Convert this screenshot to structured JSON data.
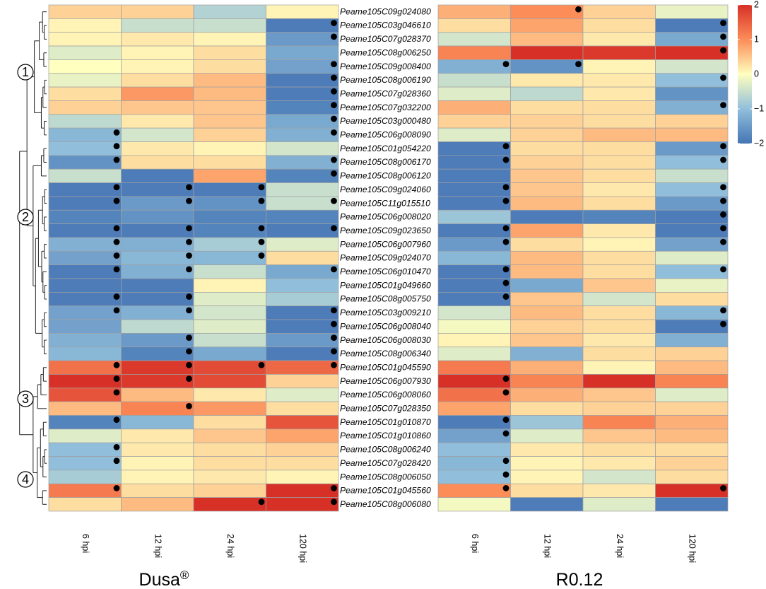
{
  "chart_data": {
    "type": "heatmap",
    "genes": [
      "Peame105C09g024080",
      "Peame105C03g046610",
      "Peame105C07g028370",
      "Peame105C08g006250",
      "Peame105C09g008400",
      "Peame105C08g006190",
      "Peame105C07g028360",
      "Peame105C07g032200",
      "Peame105C03g000480",
      "Peame105C06g008090",
      "Peame105C01g054220",
      "Peame105C08g006170",
      "Peame105C08g006120",
      "Peame105C09g024060",
      "Peame105C11g015510",
      "Peame105C06g008020",
      "Peame105C09g023650",
      "Peame105C06g007960",
      "Peame105C09g024070",
      "Peame105C06g010470",
      "Peame105C01g049660",
      "Peame105C08g005750",
      "Peame105C03g009210",
      "Peame105C06g008040",
      "Peame105C06g008030",
      "Peame105C08g006340",
      "Peame105C01g045590",
      "Peame105C06g007930",
      "Peame105C06g008060",
      "Peame105C07g028350",
      "Peame105C01g010870",
      "Peame105C01g010860",
      "Peame105C08g006240",
      "Peame105C07g028420",
      "Peame105C08g006050",
      "Peame105C01g045560",
      "Peame105C08g006080"
    ],
    "columns": [
      "6 hpi",
      "12 hpi",
      "24 hpi",
      "120 hpi"
    ],
    "panels": [
      {
        "name": "Dusa",
        "superscript": "®",
        "values": [
          [
            0.4,
            0.4,
            -0.7,
            0.1
          ],
          [
            0.1,
            -0.5,
            -0.5,
            -1.9
          ],
          [
            0.1,
            0.2,
            0.1,
            -1.5
          ],
          [
            -0.3,
            0.1,
            0.3,
            -1.3
          ],
          [
            0.0,
            0.1,
            0.3,
            -1.4
          ],
          [
            -0.2,
            0.3,
            0.6,
            -1.9
          ],
          [
            0.3,
            0.9,
            0.6,
            -1.9
          ],
          [
            0.4,
            0.5,
            0.5,
            -1.8
          ],
          [
            -0.6,
            0.2,
            0.5,
            -1.3
          ],
          [
            -1.1,
            -0.4,
            0.4,
            -1.2
          ],
          [
            -1.0,
            0.2,
            0.1,
            -0.4
          ],
          [
            -1.6,
            0.3,
            0.3,
            -1.2
          ],
          [
            -0.5,
            -1.9,
            0.8,
            -1.8
          ],
          [
            -1.9,
            -1.9,
            -1.9,
            -0.5
          ],
          [
            -1.9,
            -1.5,
            -1.6,
            -0.5
          ],
          [
            -1.8,
            -1.6,
            -1.8,
            -1.8
          ],
          [
            -1.9,
            -1.9,
            -1.8,
            -1.9
          ],
          [
            -1.2,
            -1.2,
            -0.8,
            -0.3
          ],
          [
            -1.4,
            -1.1,
            -1.1,
            0.3
          ],
          [
            -1.9,
            -1.2,
            -0.5,
            -1.3
          ],
          [
            -1.9,
            -1.9,
            0.1,
            -1.0
          ],
          [
            -1.9,
            -1.9,
            -0.3,
            -0.8
          ],
          [
            -1.4,
            -1.2,
            -0.4,
            -1.9
          ],
          [
            -1.4,
            -0.6,
            -0.3,
            -1.9
          ],
          [
            -1.2,
            -1.5,
            -0.5,
            -1.5
          ],
          [
            -1.1,
            -1.8,
            -1.3,
            -1.9
          ],
          [
            1.3,
            1.9,
            1.7,
            1.4
          ],
          [
            2.0,
            1.9,
            1.7,
            0.4
          ],
          [
            1.6,
            0.6,
            0.2,
            -0.3
          ],
          [
            0.6,
            1.1,
            0.9,
            0.3
          ],
          [
            -1.8,
            -1.1,
            0.3,
            1.6
          ],
          [
            -0.3,
            0.2,
            0.5,
            0.8
          ],
          [
            -1.0,
            0.2,
            0.3,
            0.4
          ],
          [
            -1.0,
            0.1,
            0.3,
            0.3
          ],
          [
            -0.8,
            0.1,
            0.2,
            0.1
          ],
          [
            1.2,
            0.3,
            0.4,
            2.0
          ],
          [
            0.3,
            0.6,
            2.0,
            2.0
          ]
        ],
        "dots": [
          [
            0,
            0,
            0,
            0
          ],
          [
            0,
            0,
            0,
            1
          ],
          [
            0,
            0,
            0,
            1
          ],
          [
            0,
            0,
            0,
            0
          ],
          [
            0,
            0,
            0,
            1
          ],
          [
            0,
            0,
            0,
            1
          ],
          [
            0,
            0,
            0,
            1
          ],
          [
            0,
            0,
            0,
            1
          ],
          [
            0,
            0,
            0,
            1
          ],
          [
            1,
            0,
            0,
            1
          ],
          [
            1,
            0,
            0,
            0
          ],
          [
            1,
            0,
            0,
            1
          ],
          [
            0,
            0,
            0,
            1
          ],
          [
            1,
            1,
            1,
            0
          ],
          [
            1,
            1,
            1,
            1
          ],
          [
            0,
            0,
            0,
            0
          ],
          [
            1,
            1,
            1,
            1
          ],
          [
            1,
            1,
            1,
            0
          ],
          [
            1,
            1,
            1,
            0
          ],
          [
            1,
            1,
            0,
            1
          ],
          [
            0,
            0,
            0,
            0
          ],
          [
            1,
            1,
            0,
            0
          ],
          [
            1,
            1,
            0,
            1
          ],
          [
            0,
            0,
            0,
            1
          ],
          [
            0,
            1,
            0,
            1
          ],
          [
            0,
            1,
            0,
            1
          ],
          [
            1,
            1,
            1,
            1
          ],
          [
            1,
            1,
            0,
            0
          ],
          [
            1,
            0,
            0,
            0
          ],
          [
            0,
            1,
            0,
            0
          ],
          [
            1,
            0,
            0,
            0
          ],
          [
            0,
            0,
            0,
            0
          ],
          [
            1,
            0,
            0,
            0
          ],
          [
            1,
            0,
            0,
            0
          ],
          [
            0,
            0,
            0,
            0
          ],
          [
            1,
            0,
            0,
            1
          ],
          [
            0,
            0,
            1,
            1
          ]
        ]
      },
      {
        "name": "R0.12",
        "superscript": "",
        "values": [
          [
            0.7,
            1.0,
            0.4,
            -0.2
          ],
          [
            0.3,
            0.8,
            0.3,
            -1.9
          ],
          [
            -0.4,
            0.6,
            0.2,
            -1.3
          ],
          [
            1.1,
            2.0,
            1.9,
            2.0
          ],
          [
            -1.2,
            -1.6,
            0.1,
            -0.4
          ],
          [
            -0.5,
            0.2,
            0.2,
            -1.0
          ],
          [
            -0.3,
            -0.6,
            0.2,
            -1.6
          ],
          [
            0.7,
            0.3,
            0.3,
            -1.2
          ],
          [
            0.4,
            0.4,
            0.3,
            0.4
          ],
          [
            -0.3,
            0.4,
            0.6,
            0.6
          ],
          [
            -1.9,
            0.3,
            0.3,
            -1.5
          ],
          [
            -1.9,
            0.4,
            0.3,
            -1.0
          ],
          [
            -1.9,
            0.5,
            0.3,
            -0.5
          ],
          [
            -1.9,
            0.5,
            0.2,
            -1.0
          ],
          [
            -1.9,
            0.6,
            0.3,
            -1.5
          ],
          [
            -0.9,
            -1.9,
            -1.8,
            -1.9
          ],
          [
            -1.9,
            0.8,
            0.2,
            -1.9
          ],
          [
            -1.5,
            0.3,
            0.1,
            -1.4
          ],
          [
            -1.1,
            0.6,
            0.3,
            -0.3
          ],
          [
            -1.9,
            0.6,
            0.3,
            -1.0
          ],
          [
            -1.9,
            -1.3,
            0.5,
            -0.2
          ],
          [
            -1.9,
            0.5,
            -0.4,
            0.3
          ],
          [
            -0.4,
            0.6,
            0.3,
            -1.1
          ],
          [
            -0.1,
            0.4,
            0.3,
            -1.9
          ],
          [
            0.1,
            0.5,
            0.2,
            -1.2
          ],
          [
            -0.3,
            -1.2,
            0.3,
            0.4
          ],
          [
            1.2,
            0.7,
            0.1,
            0.6
          ],
          [
            2.0,
            1.1,
            2.0,
            1.1
          ],
          [
            1.3,
            0.7,
            0.5,
            -0.3
          ],
          [
            0.8,
            0.3,
            0.4,
            0.4
          ],
          [
            -1.9,
            -0.9,
            1.1,
            0.7
          ],
          [
            -1.4,
            -0.3,
            0.5,
            0.6
          ],
          [
            -1.0,
            0.2,
            0.3,
            0.3
          ],
          [
            -1.1,
            0.1,
            0.2,
            0.4
          ],
          [
            -1.0,
            0.1,
            -0.4,
            0.3
          ],
          [
            1.0,
            0.3,
            0.2,
            2.0
          ],
          [
            -0.1,
            -1.9,
            -0.3,
            -1.9
          ]
        ],
        "dots": [
          [
            0,
            1,
            0,
            0
          ],
          [
            0,
            0,
            0,
            1
          ],
          [
            0,
            0,
            0,
            1
          ],
          [
            0,
            0,
            0,
            1
          ],
          [
            1,
            1,
            0,
            0
          ],
          [
            0,
            0,
            0,
            1
          ],
          [
            0,
            0,
            0,
            0
          ],
          [
            0,
            0,
            0,
            1
          ],
          [
            0,
            0,
            0,
            0
          ],
          [
            0,
            0,
            0,
            0
          ],
          [
            1,
            0,
            0,
            1
          ],
          [
            1,
            0,
            0,
            1
          ],
          [
            0,
            0,
            0,
            0
          ],
          [
            1,
            0,
            0,
            1
          ],
          [
            1,
            0,
            0,
            1
          ],
          [
            0,
            0,
            0,
            1
          ],
          [
            1,
            0,
            0,
            1
          ],
          [
            1,
            0,
            0,
            1
          ],
          [
            0,
            0,
            0,
            0
          ],
          [
            1,
            0,
            0,
            1
          ],
          [
            1,
            0,
            0,
            0
          ],
          [
            1,
            0,
            0,
            0
          ],
          [
            0,
            0,
            0,
            1
          ],
          [
            0,
            0,
            0,
            1
          ],
          [
            0,
            0,
            0,
            0
          ],
          [
            0,
            0,
            0,
            0
          ],
          [
            0,
            0,
            0,
            0
          ],
          [
            1,
            0,
            0,
            0
          ],
          [
            1,
            0,
            0,
            0
          ],
          [
            0,
            0,
            0,
            0
          ],
          [
            1,
            0,
            0,
            0
          ],
          [
            1,
            0,
            0,
            0
          ],
          [
            0,
            0,
            0,
            0
          ],
          [
            1,
            0,
            0,
            0
          ],
          [
            1,
            0,
            0,
            0
          ],
          [
            1,
            0,
            0,
            1
          ],
          [
            0,
            0,
            0,
            0
          ]
        ]
      }
    ],
    "legend": {
      "range": [
        -2,
        2
      ],
      "ticks": [
        "2",
        "1",
        "0",
        "−1",
        "−2"
      ],
      "tick_values": [
        2,
        1,
        0,
        -1,
        -2
      ],
      "colors": [
        "#4575b4",
        "#91bfdb",
        "#ffffbf",
        "#fc8d59",
        "#d73027"
      ]
    },
    "dendrogram_clusters": [
      {
        "label": "1",
        "first_row": 0,
        "last_row": 9
      },
      {
        "label": "2",
        "first_row": 10,
        "last_row": 25
      },
      {
        "label": "3",
        "first_row": 26,
        "last_row": 29
      },
      {
        "label": "4",
        "first_row": 30,
        "last_row": 36
      }
    ]
  }
}
